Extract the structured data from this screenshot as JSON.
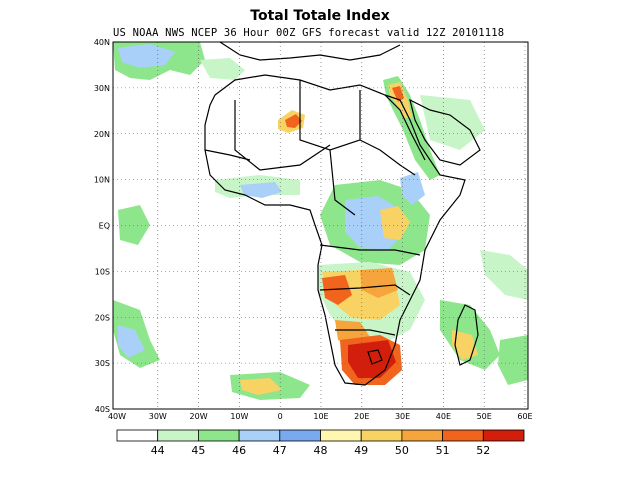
{
  "header": {
    "title": "Total Totale Index",
    "subtitle": "US NOAA NWS NCEP 36 Hour 00Z GFS forecast valid 12Z 20101118"
  },
  "axes": {
    "lat_labels": [
      "40N",
      "30N",
      "20N",
      "10N",
      "EQ",
      "10S",
      "20S",
      "30S",
      "40S"
    ],
    "lon_labels": [
      "40W",
      "30W",
      "20W",
      "10W",
      "0",
      "10E",
      "20E",
      "30E",
      "40E",
      "50E",
      "60E"
    ]
  },
  "colorbar": {
    "labels": [
      "44",
      "45",
      "46",
      "47",
      "48",
      "49",
      "50",
      "51",
      "52"
    ],
    "colors": [
      "#ffffff",
      "#c8f5c8",
      "#8ee68c",
      "#a8d0f8",
      "#78aaf0",
      "#fff6b0",
      "#f9d264",
      "#f5a53c",
      "#f0641e",
      "#d21e0a"
    ]
  },
  "legend_semantics": {
    "boundary_color": "#000000",
    "grid_style": "dotted"
  }
}
